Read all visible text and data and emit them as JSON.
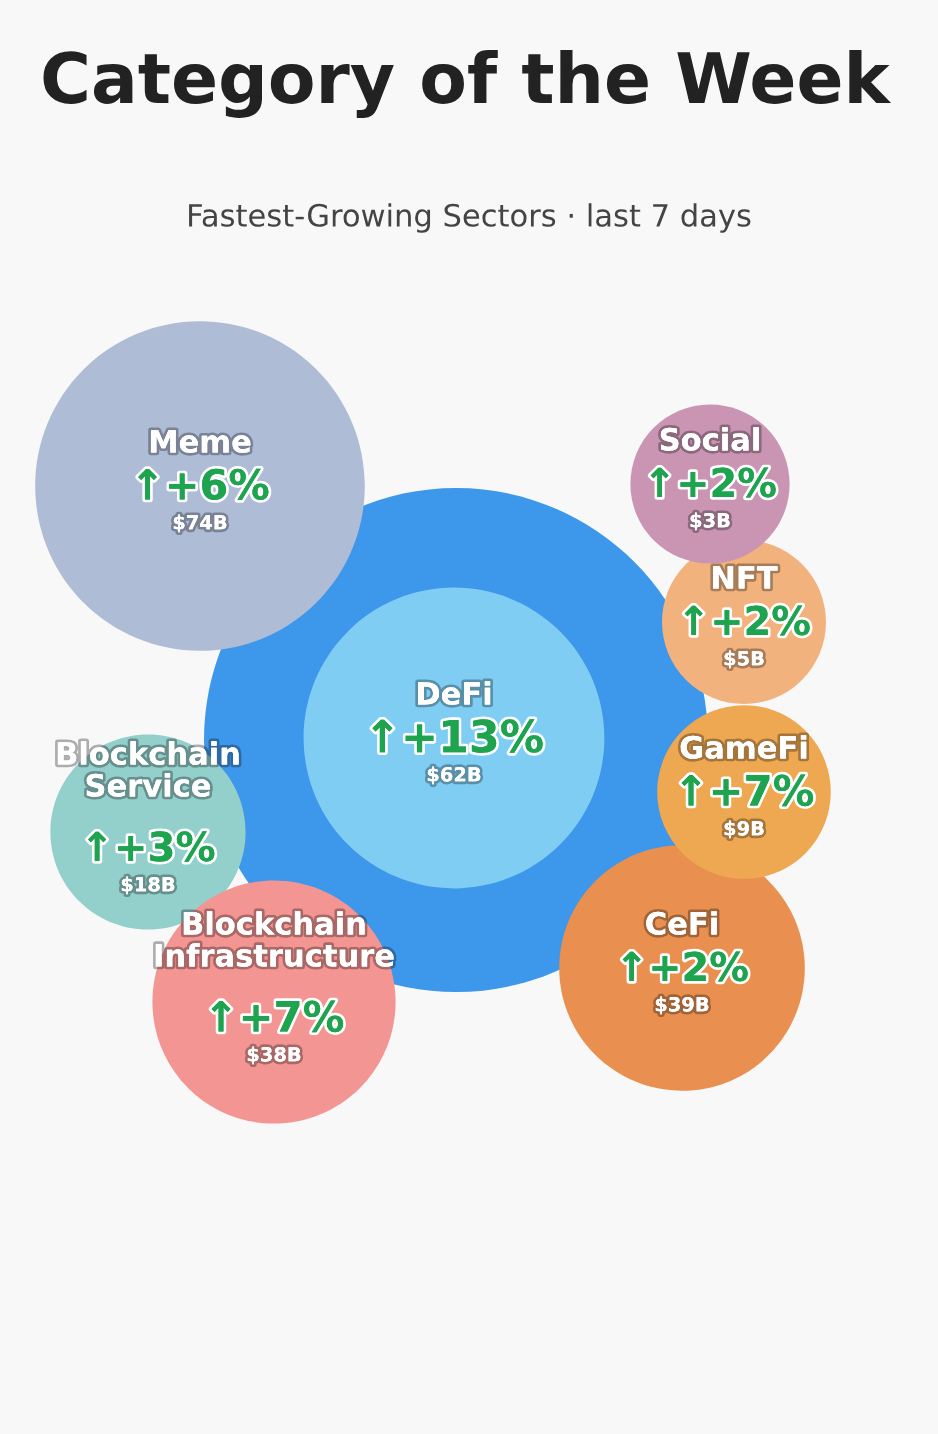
{
  "chart_data": {
    "type": "other",
    "title": "Category of the Week",
    "subtitle": "Fastest-Growing Sectors · last 7 days",
    "categories": [
      "Meme",
      "Social",
      "NFT",
      "DeFi",
      "Blockchain Service",
      "GameFi",
      "Blockchain Infrastructure",
      "CeFi"
    ],
    "series": [
      {
        "colors": [
          "#aebcd6",
          "#c995b3",
          "#f2b27e",
          "#7fcdf2",
          "#93cfcb",
          "#eea852",
          "#f39592",
          "#e98f50"
        ],
        "values": [
          6,
          2,
          2,
          13,
          3,
          7,
          7,
          2
        ],
        "value_labels": [
          "↑+6%",
          "↑+2%",
          "↑+2%",
          "↑+13%",
          "↑+3%",
          "↑+7%",
          "↑+7%",
          "↑+2%"
        ]
      },
      {
        "values": [
          74,
          3,
          5,
          62,
          18,
          9,
          38,
          39
        ],
        "value_labels": [
          "$74B",
          "$3B",
          "$5B",
          "$62B",
          "$18B",
          "$9B",
          "$38B",
          "$39B"
        ]
      }
    ]
  }
}
